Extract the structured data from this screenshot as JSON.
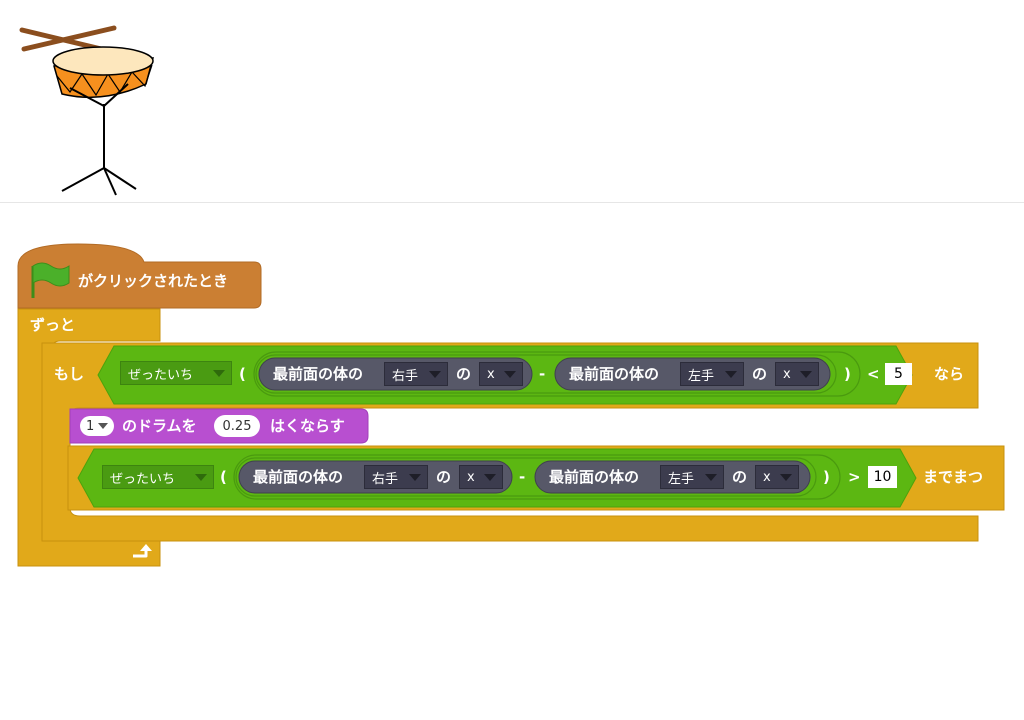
{
  "script": {
    "hat": {
      "label": "がクリックされたとき",
      "icon": "green-flag-icon"
    },
    "forever": {
      "label": "ずっと",
      "loop_icon": "loop-arrow-icon"
    },
    "if_block": {
      "if_label": "もし",
      "then_label": "なら",
      "condition": {
        "function": "ぜったいち",
        "open_paren": "(",
        "close_paren": ")",
        "left_reporter": {
          "label": "最前面の体の",
          "part": "右手",
          "of": "の",
          "attr": "x"
        },
        "operator": "-",
        "right_reporter": {
          "label": "最前面の体の",
          "part": "左手",
          "of": "の",
          "attr": "x"
        },
        "comparison": "<",
        "threshold": "5"
      }
    },
    "drum_block": {
      "drum_number": "1",
      "text1": "のドラムを",
      "beats": "0.25",
      "text2": "はくならす"
    },
    "wait_until": {
      "until_label": "までまつ",
      "condition": {
        "function": "ぜったいち",
        "open_paren": "(",
        "close_paren": ")",
        "left_reporter": {
          "label": "最前面の体の",
          "part": "右手",
          "of": "の",
          "attr": "x"
        },
        "operator": "-",
        "right_reporter": {
          "label": "最前面の体の",
          "part": "左手",
          "of": "の",
          "attr": "x"
        },
        "comparison": ">",
        "threshold": "10"
      }
    }
  },
  "colors": {
    "events": "#cb7f33",
    "control": "#e1a91a",
    "operators": "#5cb712",
    "sensing_dark": "#575868",
    "sound": "#b84fd0"
  }
}
